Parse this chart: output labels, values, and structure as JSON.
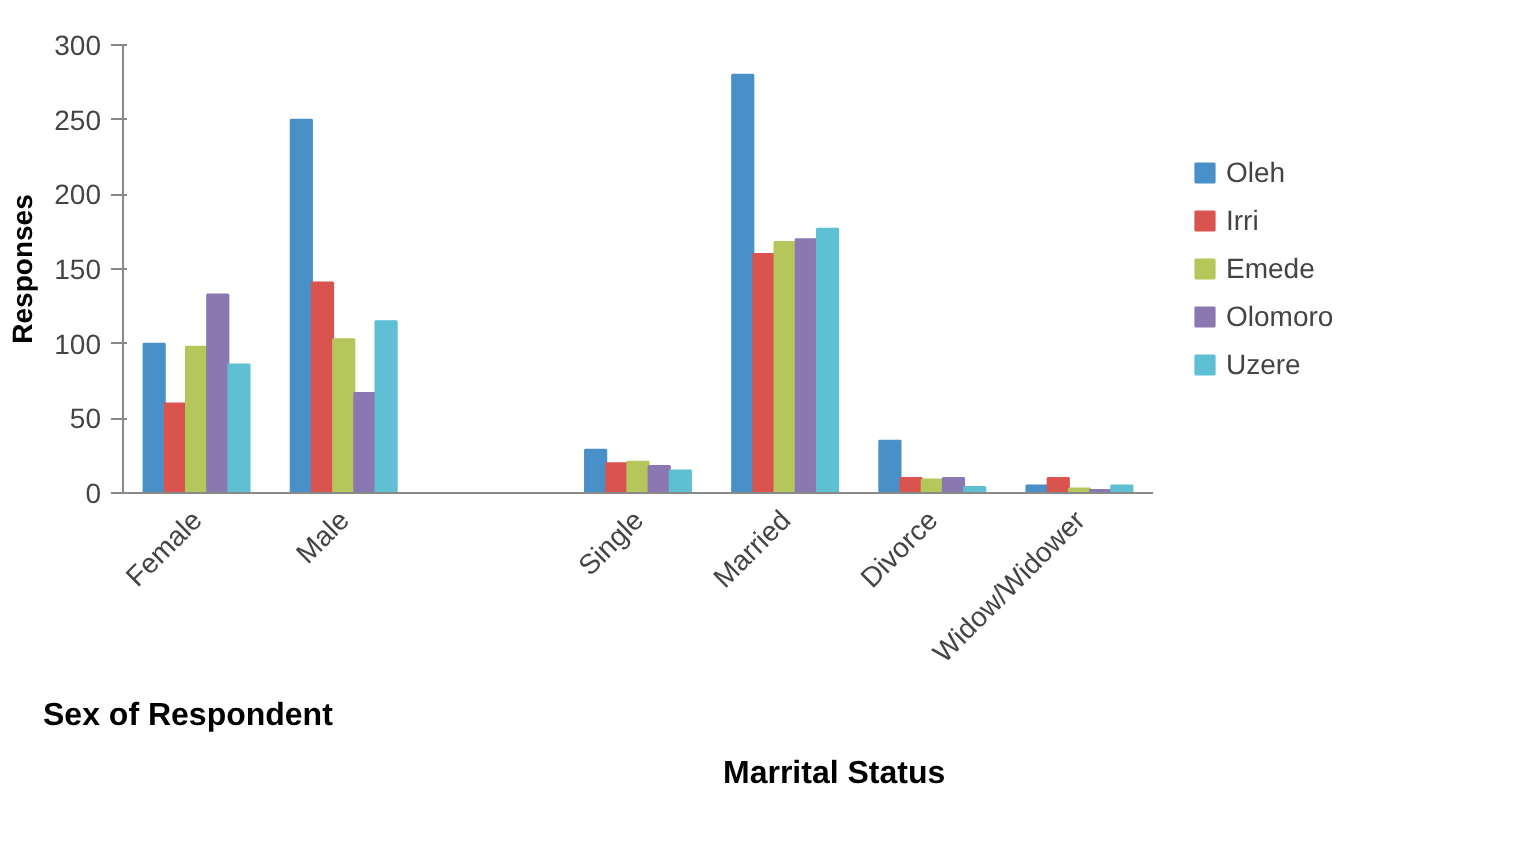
{
  "chart_data": {
    "type": "bar",
    "ylabel": "Responses",
    "annotations": [
      "Sex of Respondent",
      "Marrital Status"
    ],
    "categories": [
      "Female",
      "Male",
      null,
      "Single",
      "Married",
      "Divorce",
      "Widow/Widower"
    ],
    "series": [
      {
        "name": "Oleh",
        "color": "#4a90c8",
        "values": [
          100,
          250,
          null,
          29,
          280,
          35,
          5
        ]
      },
      {
        "name": "Irri",
        "color": "#d9534f",
        "values": [
          60,
          141,
          null,
          20,
          160,
          10,
          10
        ]
      },
      {
        "name": "Emede",
        "color": "#b5c75a",
        "values": [
          98,
          103,
          null,
          21,
          168,
          9,
          3
        ]
      },
      {
        "name": "Olomoro",
        "color": "#8b78b0",
        "values": [
          133,
          67,
          null,
          18,
          170,
          10,
          2
        ]
      },
      {
        "name": "Uzere",
        "color": "#5fbfd3",
        "values": [
          86,
          115,
          null,
          15,
          177,
          4,
          5
        ]
      }
    ],
    "ylim": [
      0,
      300
    ],
    "yticks": [
      0,
      50,
      100,
      150,
      200,
      250,
      300
    ],
    "grid": false,
    "legend": "right"
  }
}
